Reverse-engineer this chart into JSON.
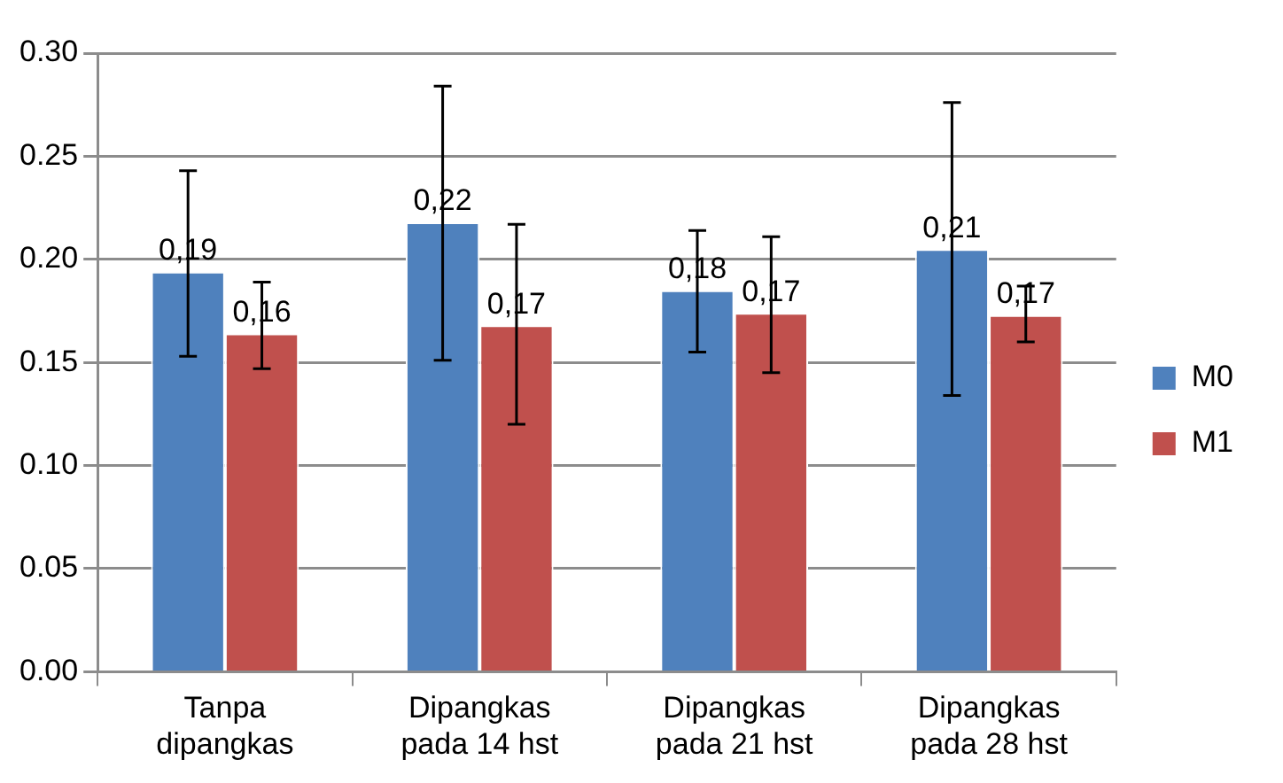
{
  "chart_data": {
    "type": "bar",
    "categories": [
      "Tanpa dipangkas",
      "Dipangkas pada 14 hst",
      "Dipangkas pada 21 hst",
      "Dipangkas pada 28 hst"
    ],
    "series": [
      {
        "name": "M0",
        "color": "#4f81bd",
        "values": [
          0.194,
          0.218,
          0.185,
          0.205
        ],
        "errors": [
          [
            0.153,
            0.243
          ],
          [
            0.151,
            0.284
          ],
          [
            0.155,
            0.214
          ],
          [
            0.134,
            0.276
          ]
        ],
        "value_labels": [
          "0,19",
          "0,22",
          "0,18",
          "0,21"
        ]
      },
      {
        "name": "M1",
        "color": "#c0504d",
        "values": [
          0.164,
          0.168,
          0.174,
          0.173
        ],
        "errors": [
          [
            0.147,
            0.189
          ],
          [
            0.12,
            0.217
          ],
          [
            0.145,
            0.211
          ],
          [
            0.16,
            0.187
          ]
        ],
        "value_labels": [
          "0,16",
          "0,17",
          "0,17",
          "0,17"
        ]
      }
    ],
    "ylim": [
      0,
      0.3
    ],
    "yticks": [
      {
        "value": 0,
        "label": "0.00"
      },
      {
        "value": 0.05,
        "label": "0.05"
      },
      {
        "value": 0.1,
        "label": "0.10"
      },
      {
        "value": 0.15,
        "label": "0.15"
      },
      {
        "value": 0.2,
        "label": "0.20"
      },
      {
        "value": 0.25,
        "label": "0.25"
      },
      {
        "value": 0.3,
        "label": "0.30"
      }
    ],
    "grid": "y",
    "legend": "right"
  }
}
